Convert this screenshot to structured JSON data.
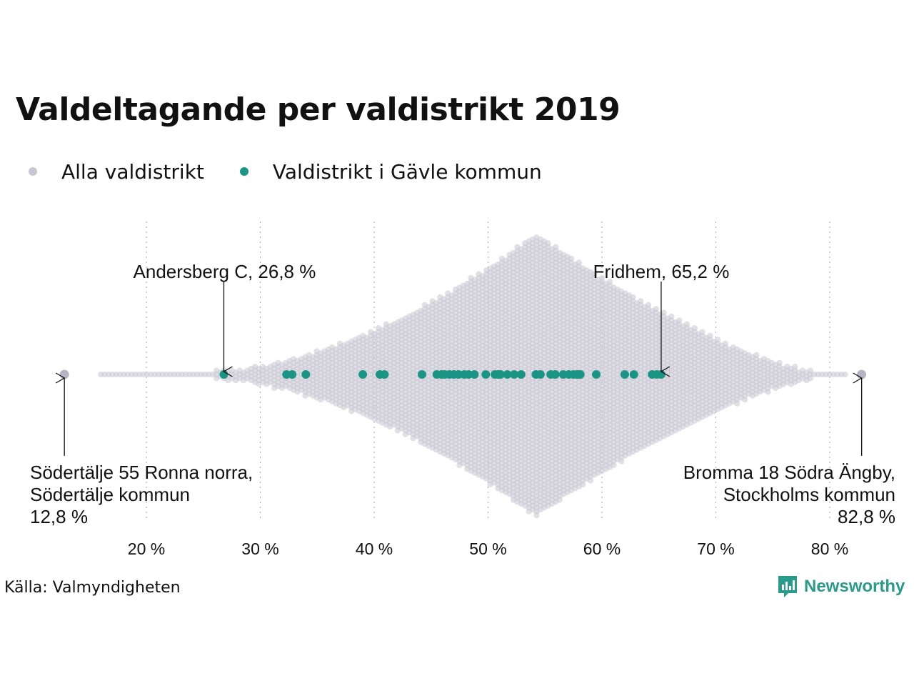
{
  "title": "Valdeltagande per valdistrikt 2019",
  "legend": [
    {
      "label": "Alla valdistrikt",
      "color": "#c8c6d2"
    },
    {
      "label": "Valdistrikt i Gävle kommun",
      "color": "#1a9585"
    }
  ],
  "source": "Källa: Valmyndigheten",
  "brand": {
    "name": "Newsworthy",
    "color": "#2a9a8b",
    "icon": "bar-chart-logo-icon"
  },
  "chart_data": {
    "type": "scatter",
    "xlim": [
      10,
      85
    ],
    "x_ticks": [
      20,
      30,
      40,
      50,
      60,
      70,
      80
    ],
    "x_tick_labels": [
      "20 %",
      "30 %",
      "40 %",
      "50 %",
      "60 %",
      "70 %",
      "80 %"
    ],
    "grid": "vertical dotted",
    "series": [
      {
        "name": "Alla valdistrikt",
        "color": "#c8c6d2",
        "x_min": 12.8,
        "x_max": 82.8,
        "peak": 54
      },
      {
        "name": "Valdistrikt i Gävle kommun",
        "color": "#1a9585",
        "values": [
          26.8,
          32.3,
          32.8,
          34.0,
          39.0,
          40.5,
          40.9,
          44.2,
          45.5,
          45.9,
          46.2,
          46.6,
          47.0,
          47.4,
          47.9,
          48.3,
          48.8,
          49.8,
          50.6,
          50.9,
          51.1,
          51.7,
          52.3,
          52.9,
          54.2,
          54.6,
          55.5,
          55.9,
          56.6,
          57.1,
          57.5,
          57.8,
          58.0,
          58.1,
          59.5,
          62.0,
          62.8,
          64.4,
          64.8,
          65.2
        ]
      }
    ],
    "annotations": [
      {
        "label": "Andersberg C, 26,8 %",
        "x": 26.8
      },
      {
        "label": "Fridhem, 65,2 %",
        "x": 65.2
      },
      {
        "lines": [
          "Södertälje 55 Ronna norra,",
          "Södertälje kommun",
          "12,8 %"
        ],
        "x": 12.8,
        "align": "left"
      },
      {
        "lines": [
          "Bromma 18 Södra Ängby,",
          "Stockholms kommun",
          "82,8 %"
        ],
        "x": 82.8,
        "align": "right"
      }
    ]
  }
}
